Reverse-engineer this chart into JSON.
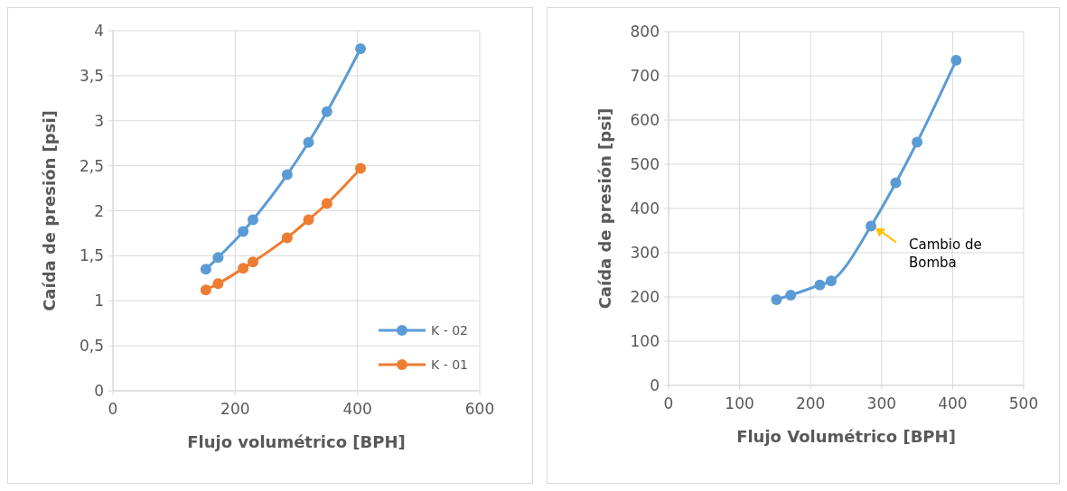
{
  "chart_data": [
    {
      "type": "line",
      "xlabel": "Flujo volumétrico [BPH]",
      "ylabel": "Caída de presión [psi]",
      "x": [
        152,
        172,
        213,
        229,
        285,
        320,
        350,
        405
      ],
      "series": [
        {
          "name": "K - 02",
          "color": "#5b9bd5",
          "values": [
            1.35,
            1.48,
            1.77,
            1.9,
            2.4,
            2.76,
            3.1,
            3.8
          ]
        },
        {
          "name": "K - 01",
          "color": "#ed7d31",
          "values": [
            1.12,
            1.19,
            1.36,
            1.43,
            1.7,
            1.9,
            2.08,
            2.47
          ]
        }
      ],
      "xlim": [
        0,
        600
      ],
      "xticks": [
        0,
        200,
        400,
        600
      ],
      "ylim": [
        0,
        4
      ],
      "yticks": [
        0,
        {
          "value": 0.5,
          "label": "0,5"
        },
        1,
        {
          "value": 1.5,
          "label": "1,5"
        },
        2,
        {
          "value": 2.5,
          "label": "2,5"
        },
        3,
        {
          "value": 3.5,
          "label": "3,5"
        },
        4
      ],
      "grid": true,
      "legend": "bottom right",
      "marker": "circle",
      "line_style": "solid"
    },
    {
      "type": "line",
      "xlabel": "Flujo Volumétrico [BPH]",
      "ylabel": "Caída de presión [psi]",
      "x": [
        152,
        172,
        213,
        229,
        285,
        320,
        350,
        405
      ],
      "series": [
        {
          "color": "#5b9bd5",
          "values": [
            194,
            204,
            227,
            236,
            360,
            458,
            550,
            735
          ]
        }
      ],
      "xlim": [
        0,
        500
      ],
      "xticks": [
        0,
        100,
        200,
        300,
        400,
        500
      ],
      "ylim": [
        0,
        800
      ],
      "yticks": [
        0,
        100,
        200,
        300,
        400,
        500,
        600,
        700,
        800
      ],
      "grid": true,
      "marker": "circle",
      "line_style": "solid",
      "annotations": [
        {
          "text": "Cambio de Bomba",
          "x": 285,
          "y": 360
        }
      ]
    }
  ]
}
